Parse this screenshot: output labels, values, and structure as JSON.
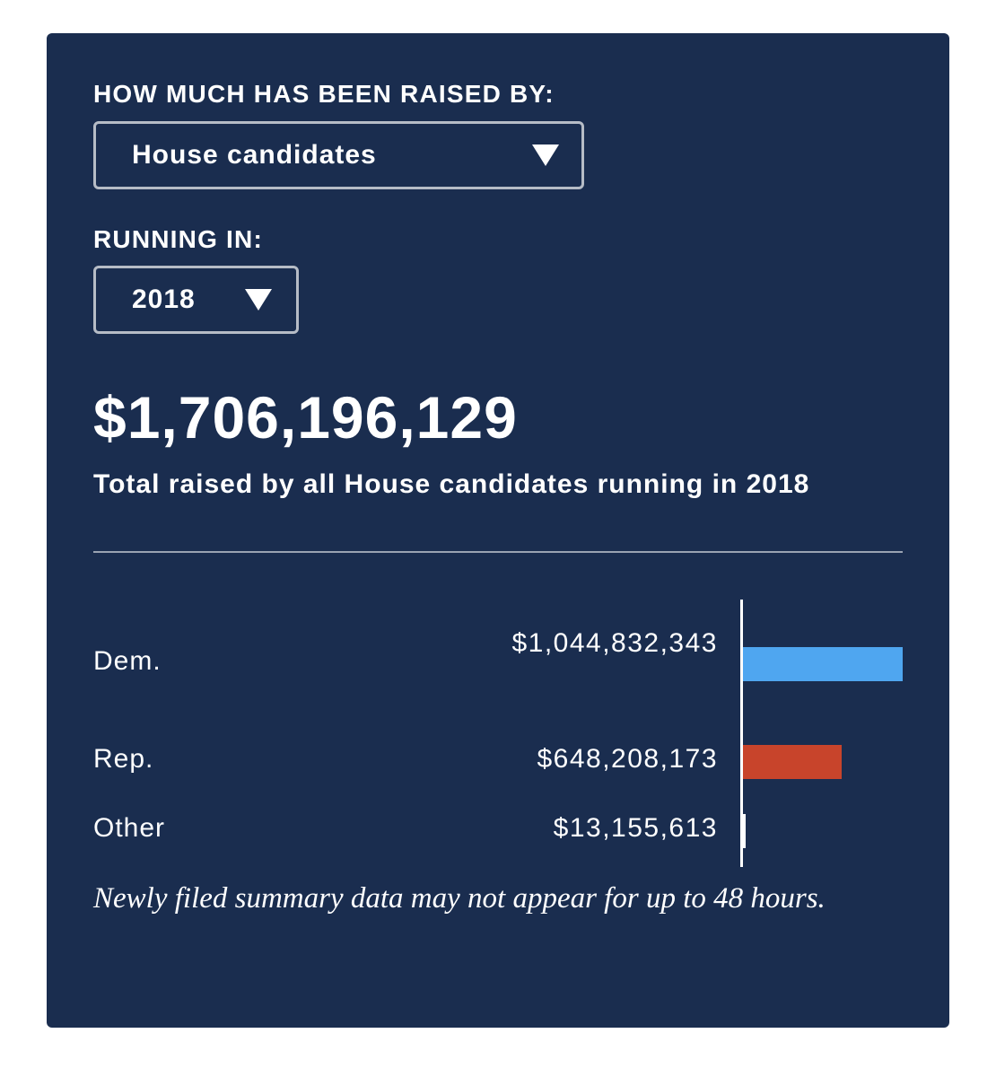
{
  "filter": {
    "raised_by_label": "HOW MUCH HAS BEEN RAISED BY:",
    "raised_by_value": "House candidates",
    "running_in_label": "RUNNING IN:",
    "running_in_value": "2018"
  },
  "summary": {
    "total": "$1,706,196,129",
    "description": "Total raised by all House candidates running in 2018"
  },
  "note": "Newly filed summary data may not appear for up to 48 hours.",
  "icons": {
    "dropdown": "triangle-down-icon"
  },
  "chart_data": {
    "type": "bar",
    "orientation": "horizontal",
    "categories": [
      "Dem.",
      "Rep.",
      "Other"
    ],
    "values": [
      1044832343,
      648208173,
      13155613
    ],
    "value_labels": [
      "$1,044,832,343",
      "$648,208,173",
      "$13,155,613"
    ],
    "colors": [
      "#4fa6f0",
      "#c8442b",
      "#ffffff"
    ],
    "grid": false,
    "legend": "none"
  }
}
